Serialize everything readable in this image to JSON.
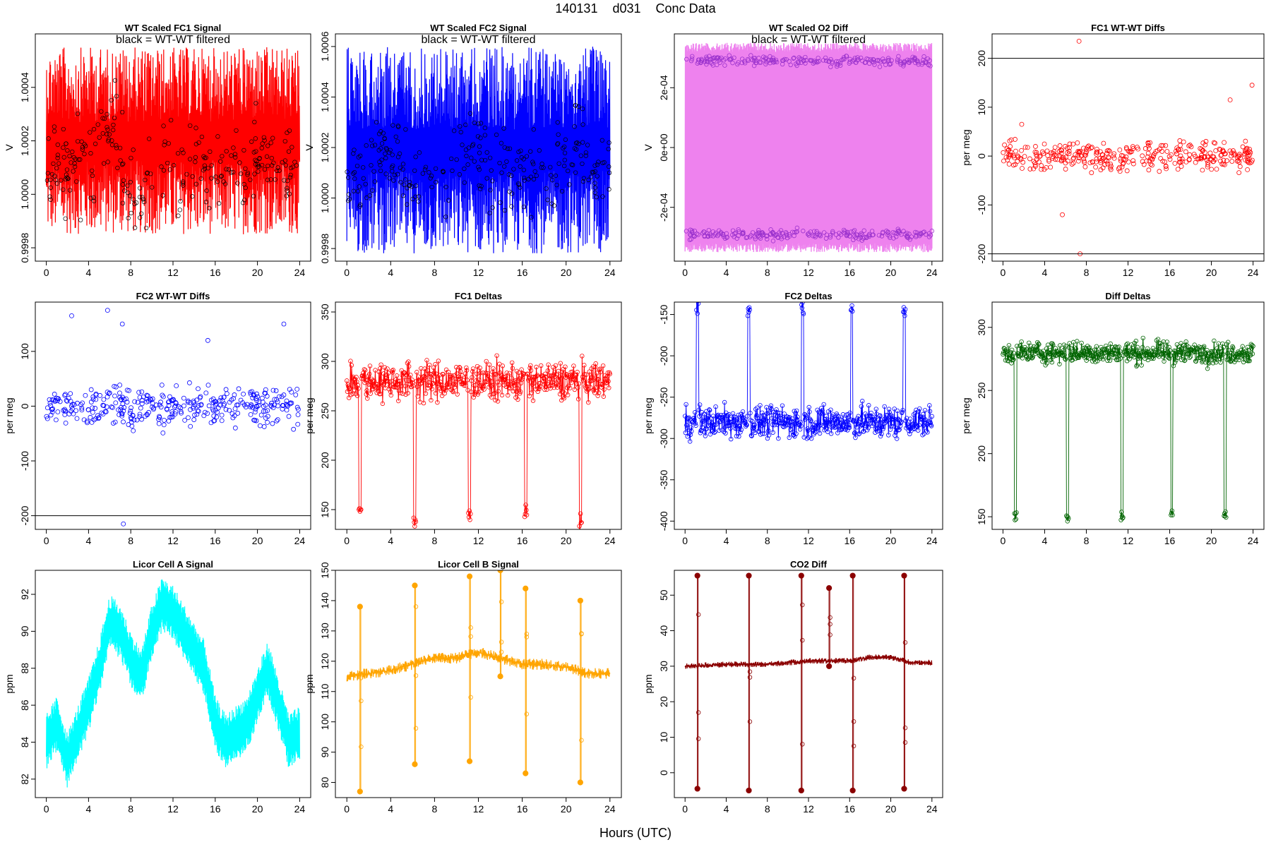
{
  "page_title": [
    "140131",
    "d031",
    "Conc Data"
  ],
  "x_axis_label": "Hours (UTC)",
  "chart_data": [
    {
      "id": "p1",
      "type": "line",
      "title": "WT Scaled FC1 Signal",
      "annotation": "black = WT-WT filtered",
      "ylabel": "V",
      "xlim": [
        0,
        24
      ],
      "ylim": [
        0.99975,
        1.0006
      ],
      "xticks": [
        0,
        4,
        8,
        12,
        16,
        20,
        24
      ],
      "yticks": [
        0.9998,
        1.0,
        1.0002,
        1.0004
      ],
      "ytick_labels": [
        "0.9998",
        "1.0000",
        "1.0002",
        "1.0004"
      ],
      "color": "#ff0000",
      "overlay_color": "#000000",
      "render": "band",
      "band": {
        "lo": 0.99985,
        "hi": 1.00055
      },
      "centers": [
        1.0001,
        1.0001,
        1.0002,
        1.0,
        1.00015,
        1.0001,
        1.0001,
        1.0001,
        1.00015,
        1.0001
      ]
    },
    {
      "id": "p2",
      "type": "line",
      "title": "WT Scaled FC2 Signal",
      "annotation": "black = WT-WT filtered",
      "ylabel": "V",
      "xlim": [
        0,
        24
      ],
      "ylim": [
        0.99975,
        1.00065
      ],
      "xticks": [
        0,
        4,
        8,
        12,
        16,
        20,
        24
      ],
      "yticks": [
        0.9998,
        1.0,
        1.0002,
        1.0004,
        1.0006
      ],
      "ytick_labels": [
        "0.9998",
        "1.0000",
        "1.0002",
        "1.0004",
        "1.0006"
      ],
      "color": "#0000ff",
      "overlay_color": "#000000",
      "render": "band",
      "band": {
        "lo": 0.99978,
        "hi": 1.0006
      },
      "centers": [
        1.0001,
        1.0002,
        1.0001,
        1.0001,
        1.0002,
        1.0001,
        1.0001,
        1.0001,
        1.0002,
        1.0001
      ]
    },
    {
      "id": "p3",
      "type": "line",
      "title": "WT Scaled O2 Diff",
      "annotation": "black = WT-WT filtered",
      "ylabel": "V",
      "xlim": [
        0,
        24
      ],
      "ylim": [
        -0.00038,
        0.00038
      ],
      "xticks": [
        0,
        4,
        8,
        12,
        16,
        20,
        24
      ],
      "yticks": [
        -0.0002,
        0,
        0.0002
      ],
      "ytick_labels": [
        "-2e-04",
        "0e+00",
        "2e-04"
      ],
      "color": "#ee82ee",
      "overlay_color": "#9a32cd",
      "render": "twoband",
      "band": {
        "lo": -0.00035,
        "hi": 0.00035
      },
      "upper": 0.00029,
      "lower": -0.00029
    },
    {
      "id": "p4",
      "type": "scatter",
      "title": "FC1 WT-WT Diffs",
      "ylabel": "per meg",
      "xlim": [
        0,
        24
      ],
      "ylim": [
        -215,
        250
      ],
      "xticks": [
        0,
        4,
        8,
        12,
        16,
        20,
        24
      ],
      "yticks": [
        -200,
        -100,
        0,
        100,
        200
      ],
      "ytick_labels": [
        "-200",
        "-100",
        "0",
        "100",
        "200"
      ],
      "color": "#ff0000",
      "render": "scatter",
      "spread": 30,
      "hlines": [
        200,
        -200
      ],
      "outliers": [
        [
          7.3,
          235
        ],
        [
          7.4,
          -200
        ],
        [
          5.7,
          -120
        ],
        [
          1.8,
          65
        ],
        [
          23.9,
          145
        ],
        [
          21.8,
          115
        ]
      ]
    },
    {
      "id": "p5",
      "type": "scatter",
      "title": "FC2 WT-WT Diffs",
      "ylabel": "per meg",
      "xlim": [
        0,
        24
      ],
      "ylim": [
        -225,
        190
      ],
      "xticks": [
        0,
        4,
        8,
        12,
        16,
        20,
        24
      ],
      "yticks": [
        -200,
        -100,
        0,
        100
      ],
      "ytick_labels": [
        "-200",
        "-100",
        "0",
        "100"
      ],
      "color": "#0000ff",
      "render": "scatter",
      "spread": 35,
      "hlines": [
        -200
      ],
      "outliers": [
        [
          5.8,
          175
        ],
        [
          7.3,
          -215
        ],
        [
          2.4,
          165
        ],
        [
          7.2,
          150
        ],
        [
          15.3,
          120
        ],
        [
          22.5,
          150
        ]
      ]
    },
    {
      "id": "p6",
      "type": "line",
      "title": "FC1 Deltas",
      "ylabel": "per meg",
      "xlim": [
        0,
        24
      ],
      "ylim": [
        130,
        360
      ],
      "xticks": [
        0,
        4,
        8,
        12,
        16,
        20,
        24
      ],
      "yticks": [
        150,
        200,
        250,
        300,
        350
      ],
      "ytick_labels": [
        "150",
        "200",
        "250",
        "300",
        "350"
      ],
      "color": "#ff0000",
      "render": "noisy",
      "base": 280,
      "noise": 18,
      "spikes": [
        [
          1.2,
          150
        ],
        [
          6.2,
          140
        ],
        [
          11.2,
          145
        ],
        [
          16.3,
          145
        ],
        [
          21.3,
          135
        ]
      ]
    },
    {
      "id": "p7",
      "type": "line",
      "title": "FC2 Deltas",
      "ylabel": "per meg",
      "xlim": [
        0,
        24
      ],
      "ylim": [
        -410,
        -135
      ],
      "xticks": [
        0,
        4,
        8,
        12,
        16,
        20,
        24
      ],
      "yticks": [
        -400,
        -350,
        -300,
        -250,
        -200,
        -150
      ],
      "ytick_labels": [
        "-400",
        "-350",
        "-300",
        "-250",
        "-200",
        "-150"
      ],
      "color": "#0000ff",
      "render": "noisy",
      "base": -280,
      "noise": 18,
      "spikes": [
        [
          1.2,
          -140
        ],
        [
          6.2,
          -145
        ],
        [
          11.4,
          -140
        ],
        [
          16.2,
          -145
        ],
        [
          21.3,
          -145
        ]
      ]
    },
    {
      "id": "p8",
      "type": "line",
      "title": "Diff Deltas",
      "ylabel": "per meg",
      "xlim": [
        0,
        24
      ],
      "ylim": [
        140,
        320
      ],
      "xticks": [
        0,
        4,
        8,
        12,
        16,
        20,
        24
      ],
      "yticks": [
        150,
        200,
        250,
        300
      ],
      "ytick_labels": [
        "150",
        "200",
        "250",
        "300"
      ],
      "color": "#006400",
      "render": "noisy",
      "base": 280,
      "noise": 8,
      "spikes": [
        [
          1.2,
          150
        ],
        [
          6.2,
          150
        ],
        [
          11.4,
          150
        ],
        [
          16.2,
          155
        ],
        [
          21.3,
          150
        ]
      ]
    },
    {
      "id": "p9",
      "type": "line",
      "title": "Licor Cell A Signal",
      "ylabel": "ppm",
      "xlim": [
        0,
        24
      ],
      "ylim": [
        81,
        93.3
      ],
      "xticks": [
        0,
        4,
        8,
        12,
        16,
        20,
        24
      ],
      "yticks": [
        82,
        84,
        86,
        88,
        90,
        92
      ],
      "ytick_labels": [
        "82",
        "84",
        "86",
        "88",
        "90",
        "92"
      ],
      "color": "#00ffff",
      "render": "envelope",
      "profile": [
        [
          0,
          84
        ],
        [
          1,
          85
        ],
        [
          2,
          83
        ],
        [
          3,
          84.5
        ],
        [
          4,
          86
        ],
        [
          5,
          88
        ],
        [
          6,
          90.5
        ],
        [
          7,
          90
        ],
        [
          8,
          88.5
        ],
        [
          9,
          87.5
        ],
        [
          10,
          90
        ],
        [
          11,
          91.5
        ],
        [
          12,
          91
        ],
        [
          13,
          90
        ],
        [
          14,
          89
        ],
        [
          15,
          88
        ],
        [
          16,
          85
        ],
        [
          17,
          84
        ],
        [
          18,
          84.5
        ],
        [
          19,
          85
        ],
        [
          20,
          86.5
        ],
        [
          21,
          88
        ],
        [
          22,
          86
        ],
        [
          23,
          84
        ],
        [
          24,
          84.5
        ]
      ],
      "width": 1.5
    },
    {
      "id": "p10",
      "type": "line",
      "title": "Licor Cell B Signal",
      "ylabel": "ppm",
      "xlim": [
        0,
        24
      ],
      "ylim": [
        75,
        150
      ],
      "xticks": [
        0,
        4,
        8,
        12,
        16,
        20,
        24
      ],
      "yticks": [
        80,
        90,
        100,
        110,
        120,
        130,
        140,
        150
      ],
      "ytick_labels": [
        "80",
        "90",
        "100",
        "110",
        "120",
        "130",
        "140",
        "150"
      ],
      "color": "#ffa500",
      "render": "baseline",
      "profile": [
        [
          0,
          115
        ],
        [
          2,
          116
        ],
        [
          4,
          117
        ],
        [
          6,
          119
        ],
        [
          8,
          121
        ],
        [
          10,
          121
        ],
        [
          12,
          123
        ],
        [
          14,
          121
        ],
        [
          16,
          119
        ],
        [
          18,
          119
        ],
        [
          20,
          118
        ],
        [
          22,
          116
        ],
        [
          24,
          116
        ]
      ],
      "width": 1.8,
      "spikes": [
        [
          1.2,
          77,
          138
        ],
        [
          6.2,
          86,
          145
        ],
        [
          11.2,
          87,
          148
        ],
        [
          16.3,
          83,
          144
        ],
        [
          21.3,
          80,
          140
        ],
        [
          14,
          115,
          150
        ]
      ]
    },
    {
      "id": "p11",
      "type": "line",
      "title": "CO2 Diff",
      "ylabel": "ppm",
      "xlim": [
        0,
        24
      ],
      "ylim": [
        -7,
        57
      ],
      "xticks": [
        0,
        4,
        8,
        12,
        16,
        20,
        24
      ],
      "yticks": [
        0,
        10,
        20,
        30,
        40,
        50
      ],
      "ytick_labels": [
        "0",
        "10",
        "20",
        "30",
        "40",
        "50"
      ],
      "color": "#8b0000",
      "render": "baseline",
      "profile": [
        [
          0,
          30
        ],
        [
          4,
          30.5
        ],
        [
          8,
          30.5
        ],
        [
          12,
          31.5
        ],
        [
          16,
          31.5
        ],
        [
          18,
          32.5
        ],
        [
          20,
          32.5
        ],
        [
          22,
          31
        ],
        [
          24,
          31
        ]
      ],
      "width": 0.8,
      "spikes": [
        [
          1.2,
          -4.5,
          55.5
        ],
        [
          6.2,
          -5,
          55.5
        ],
        [
          11.3,
          -5,
          55.5
        ],
        [
          16.3,
          -5,
          55.5
        ],
        [
          21.3,
          -4.5,
          55.5
        ],
        [
          14,
          30,
          52
        ]
      ]
    }
  ]
}
